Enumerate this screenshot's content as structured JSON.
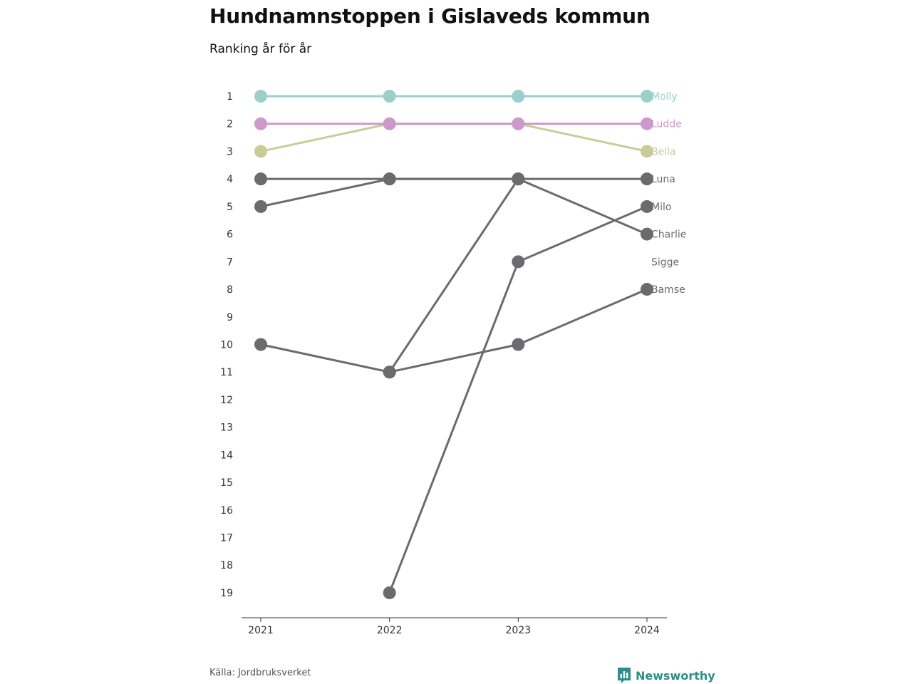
{
  "chart_data": {
    "type": "line",
    "title": "Hundnamnstoppen i Gislaveds kommun",
    "subtitle": "Ranking år för år",
    "source": "Källa: Jordbruksverket",
    "brand": "Newsworthy",
    "x": [
      "2021",
      "2022",
      "2023",
      "2024"
    ],
    "y_ticks": [
      1,
      2,
      3,
      4,
      5,
      6,
      7,
      8,
      9,
      10,
      11,
      12,
      13,
      14,
      15,
      16,
      17,
      18,
      19
    ],
    "ylim": [
      1,
      19
    ],
    "y_reversed": true,
    "grid": false,
    "series": [
      {
        "name": "Molly",
        "values": [
          1,
          1,
          1,
          1
        ],
        "color": "#9ccfcb"
      },
      {
        "name": "Ludde",
        "values": [
          2,
          2,
          2,
          2
        ],
        "color": "#cc99cc"
      },
      {
        "name": "Bella",
        "values": [
          3,
          2,
          2,
          3
        ],
        "color": "#c9cc99"
      },
      {
        "name": "Luna",
        "values": [
          4,
          4,
          4,
          4
        ],
        "color": "#6b6b6e"
      },
      {
        "name": "Milo",
        "values": [
          null,
          19,
          7,
          5
        ],
        "color": "#6b6b6e"
      },
      {
        "name": "Charlie",
        "values": [
          5,
          4,
          4,
          6
        ],
        "color": "#6b6b6e"
      },
      {
        "name": "Sigge",
        "values": [
          null,
          11,
          4,
          null
        ],
        "color": "#6b6b6e"
      },
      {
        "name": "Bamse",
        "values": [
          10,
          11,
          10,
          8
        ],
        "color": "#6b6b6e"
      }
    ]
  }
}
